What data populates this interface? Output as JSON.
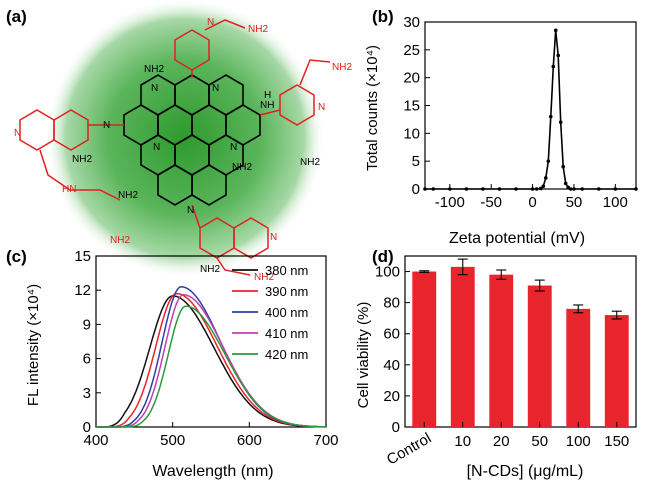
{
  "chart_data": [
    {
      "panel": "(a)",
      "type": "other",
      "structure_labels": [
        "NH2",
        "NH2",
        "NH2",
        "NH2",
        "NH2",
        "NH2",
        "NH2",
        "NH2",
        "NH2",
        "NH2",
        "NH",
        "HN",
        "N",
        "N",
        "N",
        "N",
        "N",
        "N",
        "N",
        "H",
        "N",
        "N",
        "N"
      ]
    },
    {
      "panel": "(b)",
      "type": "line",
      "xlabel": "Zeta potential (mV)",
      "ylabel": "Total counts (×10⁴)",
      "xlim": [
        -130,
        125
      ],
      "ylim": [
        0,
        30
      ],
      "xticks": [
        "-100",
        "-50",
        "0",
        "50",
        "100"
      ],
      "yticks": [
        "0",
        "5",
        "10",
        "15",
        "20",
        "25",
        "30"
      ],
      "x": [
        -130,
        -120,
        -100,
        -80,
        -60,
        -40,
        -20,
        0,
        5,
        10,
        13,
        16,
        19,
        22,
        25,
        28,
        31,
        34,
        37,
        40,
        43,
        46,
        50,
        60,
        80,
        100,
        125
      ],
      "y": [
        0,
        0,
        0,
        0,
        0,
        0,
        0,
        0,
        0,
        0.1,
        0.5,
        2,
        5,
        13,
        22,
        28.5,
        24,
        12,
        4,
        1,
        0.3,
        0,
        0,
        0,
        0,
        0,
        0
      ],
      "grid": false
    },
    {
      "panel": "(c)",
      "type": "line",
      "xlabel": "Wavelength (nm)",
      "ylabel": "FL intensity (×10⁴)",
      "xlim": [
        400,
        700
      ],
      "ylim": [
        0,
        15
      ],
      "xticks": [
        "400",
        "500",
        "600",
        "700"
      ],
      "yticks": [
        "0",
        "3",
        "6",
        "9",
        "12",
        "15"
      ],
      "legend_position": "top-right",
      "series": [
        {
          "name": "380 nm",
          "color": "#111111",
          "peak": 500,
          "height": 11.5,
          "wl": 42,
          "wr": 76,
          "start": 412
        },
        {
          "name": "390 nm",
          "color": "#e8242c",
          "peak": 505,
          "height": 11.7,
          "wl": 38,
          "wr": 75,
          "start": 418
        },
        {
          "name": "400 nm",
          "color": "#2b3fa6",
          "peak": 511,
          "height": 12.3,
          "wl": 35,
          "wr": 73,
          "start": 424
        },
        {
          "name": "410 nm",
          "color": "#c23fae",
          "peak": 514,
          "height": 11.6,
          "wl": 34,
          "wr": 73,
          "start": 430
        },
        {
          "name": "420 nm",
          "color": "#2a9a3c",
          "peak": 517,
          "height": 10.6,
          "wl": 32,
          "wr": 72,
          "start": 436
        }
      ]
    },
    {
      "panel": "(d)",
      "type": "bar",
      "xlabel": "[N-CDs] (μg/mL)",
      "ylabel": "Cell viability (%)",
      "ylim": [
        0,
        110
      ],
      "yticks": [
        "0",
        "20",
        "40",
        "60",
        "80",
        "100"
      ],
      "categories": [
        "Control",
        "10",
        "20",
        "50",
        "100",
        "150"
      ],
      "values": [
        100,
        103,
        98,
        91,
        76,
        72
      ],
      "errors": [
        0.5,
        5,
        3,
        3.5,
        2.5,
        2.5
      ],
      "color": "#e8242c"
    }
  ]
}
